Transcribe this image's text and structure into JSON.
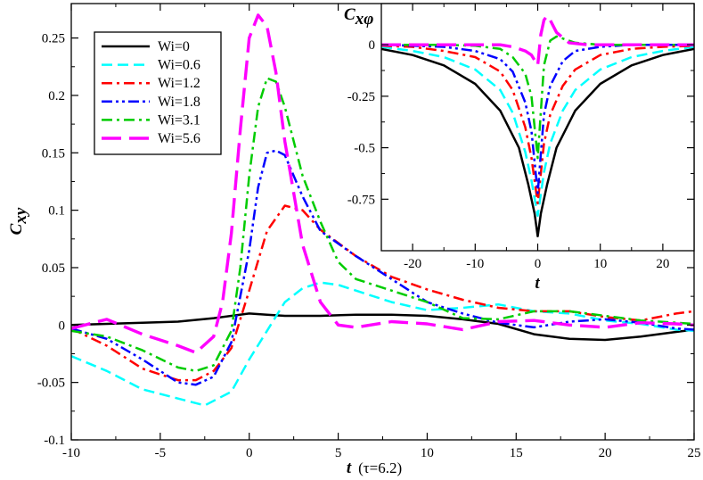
{
  "chart_data": [
    {
      "type": "line",
      "xlabel": "t",
      "xlabel_suffix": "(τ=6.2)",
      "ylabel": "C",
      "ylabel_sub": "xy",
      "xlim": [
        -10,
        25
      ],
      "ylim": [
        -0.1,
        0.28
      ],
      "xticks": [
        -10,
        -5,
        0,
        5,
        10,
        15,
        20,
        25
      ],
      "xtick_labels": [
        "-10",
        "-5",
        "0",
        "5",
        "10",
        "15",
        "20",
        "25"
      ],
      "yticks": [
        -0.1,
        -0.05,
        0,
        0.05,
        0.1,
        0.15,
        0.2,
        0.25
      ],
      "ytick_labels": [
        "-0.1",
        "-0.05",
        "0",
        "0.05",
        "0.1",
        "0.15",
        "0.2",
        "0.25"
      ],
      "legend_position": "top-left",
      "series": [
        {
          "name": "Wi=0",
          "color": "#000000",
          "dash": "solid",
          "x": [
            -10,
            -8,
            -6,
            -4,
            -2,
            0,
            1,
            2,
            4,
            6,
            8,
            10,
            12,
            14,
            16,
            18,
            20,
            22,
            24,
            25
          ],
          "y": [
            0,
            0.001,
            0.002,
            0.003,
            0.006,
            0.01,
            0.009,
            0.008,
            0.008,
            0.009,
            0.009,
            0.008,
            0.005,
            0.001,
            -0.008,
            -0.012,
            -0.013,
            -0.01,
            -0.006,
            -0.004
          ]
        },
        {
          "name": "Wi=0.6",
          "color": "#00ffff",
          "dash": "dashed",
          "x": [
            -10,
            -8,
            -6,
            -4,
            -2.5,
            -1,
            0,
            1,
            2,
            3,
            4,
            5,
            6,
            8,
            10,
            12,
            14,
            16,
            18,
            20,
            22,
            24,
            25
          ],
          "y": [
            -0.027,
            -0.04,
            -0.056,
            -0.064,
            -0.07,
            -0.058,
            -0.03,
            -0.005,
            0.02,
            0.032,
            0.037,
            0.035,
            0.03,
            0.02,
            0.013,
            0.015,
            0.018,
            0.012,
            0.01,
            0.004,
            0.001,
            -0.004,
            -0.005
          ]
        },
        {
          "name": "Wi=1.2",
          "color": "#ff0000",
          "dash": "dashdot",
          "x": [
            -10,
            -8,
            -6,
            -4,
            -3,
            -2,
            -1,
            0,
            1,
            2,
            3,
            4,
            6,
            8,
            10,
            12,
            14,
            16,
            18,
            20,
            22,
            24,
            25
          ],
          "y": [
            -0.003,
            -0.018,
            -0.038,
            -0.048,
            -0.048,
            -0.04,
            -0.02,
            0.03,
            0.082,
            0.104,
            0.1,
            0.083,
            0.06,
            0.042,
            0.031,
            0.022,
            0.015,
            0.012,
            0.012,
            0.007,
            0.004,
            0.01,
            0.012
          ]
        },
        {
          "name": "Wi=1.8",
          "color": "#0000ff",
          "dash": "dashdotdot",
          "x": [
            -10,
            -8,
            -6,
            -4,
            -3,
            -2,
            -1,
            0,
            0.5,
            1,
            1.5,
            2,
            3,
            4,
            6,
            8,
            10,
            12,
            14,
            16,
            18,
            20,
            22,
            24,
            25
          ],
          "y": [
            -0.003,
            -0.012,
            -0.03,
            -0.05,
            -0.052,
            -0.045,
            -0.015,
            0.065,
            0.12,
            0.15,
            0.152,
            0.148,
            0.112,
            0.082,
            0.06,
            0.04,
            0.02,
            0.01,
            0.002,
            -0.002,
            0.003,
            0.005,
            0.002,
            -0.003,
            -0.004
          ]
        },
        {
          "name": "Wi=3.1",
          "color": "#00cc00",
          "dash": "dashdot",
          "x": [
            -10,
            -8,
            -6,
            -4,
            -3,
            -2,
            -1,
            -0.5,
            0,
            0.5,
            1,
            1.5,
            2,
            3,
            4,
            5,
            6,
            8,
            10,
            12,
            14,
            16,
            18,
            20,
            22,
            24,
            25
          ],
          "y": [
            -0.005,
            -0.01,
            -0.022,
            -0.037,
            -0.04,
            -0.035,
            -0.005,
            0.05,
            0.13,
            0.19,
            0.215,
            0.212,
            0.19,
            0.13,
            0.09,
            0.055,
            0.04,
            0.03,
            0.02,
            0.006,
            0.005,
            0.012,
            0.012,
            0.008,
            0.004,
            0.002,
            0.001
          ]
        },
        {
          "name": "Wi=5.6",
          "color": "#ff00ff",
          "dash": "longdash",
          "x": [
            -10,
            -8,
            -6,
            -4,
            -3,
            -2,
            -1.5,
            -1,
            -0.5,
            0,
            0.5,
            1,
            1.5,
            2,
            3,
            4,
            5,
            6,
            8,
            10,
            12,
            14,
            16,
            18,
            20,
            22,
            24,
            25
          ],
          "y": [
            -0.003,
            0.005,
            -0.008,
            -0.018,
            -0.024,
            -0.01,
            0.02,
            0.08,
            0.17,
            0.25,
            0.27,
            0.26,
            0.22,
            0.16,
            0.07,
            0.02,
            0.0,
            -0.002,
            0.003,
            0.001,
            -0.004,
            0.003,
            0.004,
            0.0,
            -0.002,
            0.002,
            0.001,
            0.0
          ]
        }
      ]
    },
    {
      "type": "line",
      "title": "inset",
      "xlabel": "t",
      "ylabel": "C",
      "ylabel_sub": "xφ",
      "xlim": [
        -25,
        25
      ],
      "ylim": [
        -1,
        0.2
      ],
      "xticks": [
        -20,
        -10,
        0,
        10,
        20
      ],
      "xtick_labels": [
        "-20",
        "-10",
        "0",
        "10",
        "20"
      ],
      "yticks": [
        -0.75,
        -0.5,
        -0.25,
        0
      ],
      "ytick_labels": [
        "-0.75",
        "-0.5",
        "-0.25",
        "0"
      ],
      "series": [
        {
          "name": "Wi=0",
          "color": "#000000",
          "dash": "solid",
          "x": [
            -25,
            -20,
            -15,
            -10,
            -6,
            -3,
            -1.5,
            -0.5,
            0,
            0.5,
            1.5,
            3,
            6,
            10,
            15,
            20,
            25
          ],
          "y": [
            -0.02,
            -0.05,
            -0.1,
            -0.19,
            -0.32,
            -0.5,
            -0.68,
            -0.82,
            -0.93,
            -0.82,
            -0.68,
            -0.5,
            -0.32,
            -0.19,
            -0.1,
            -0.05,
            -0.02
          ]
        },
        {
          "name": "Wi=0.6",
          "color": "#00ffff",
          "dash": "dashed",
          "x": [
            -25,
            -20,
            -15,
            -10,
            -6,
            -4,
            -2,
            -1,
            0,
            1,
            2,
            4,
            6,
            10,
            15,
            20,
            25
          ],
          "y": [
            -0.01,
            -0.03,
            -0.06,
            -0.12,
            -0.22,
            -0.33,
            -0.52,
            -0.66,
            -0.83,
            -0.62,
            -0.48,
            -0.32,
            -0.22,
            -0.12,
            -0.06,
            -0.03,
            -0.01
          ]
        },
        {
          "name": "Wi=1.2",
          "color": "#ff0000",
          "dash": "dashdot",
          "x": [
            -25,
            -20,
            -15,
            -10,
            -6,
            -4,
            -2,
            -1,
            0,
            1,
            2,
            4,
            6,
            10,
            15,
            20,
            25
          ],
          "y": [
            -0.005,
            -0.01,
            -0.03,
            -0.06,
            -0.13,
            -0.22,
            -0.4,
            -0.55,
            -0.77,
            -0.48,
            -0.34,
            -0.2,
            -0.12,
            -0.05,
            -0.02,
            -0.01,
            -0.005
          ]
        },
        {
          "name": "Wi=1.8",
          "color": "#0000ff",
          "dash": "dashdotdot",
          "x": [
            -25,
            -20,
            -15,
            -10,
            -6,
            -4,
            -2,
            -1,
            0,
            1,
            2,
            4,
            6,
            10,
            15,
            20,
            25
          ],
          "y": [
            0,
            -0.005,
            -0.01,
            -0.03,
            -0.07,
            -0.13,
            -0.28,
            -0.42,
            -0.72,
            -0.34,
            -0.2,
            -0.08,
            -0.03,
            -0.01,
            0,
            0,
            0
          ]
        },
        {
          "name": "Wi=3.1",
          "color": "#00cc00",
          "dash": "dashdot",
          "x": [
            -25,
            -20,
            -15,
            -10,
            -6,
            -4,
            -2,
            -1,
            0,
            1,
            2,
            3,
            4,
            6,
            10,
            15,
            20,
            25
          ],
          "y": [
            0,
            0,
            0,
            -0.005,
            -0.02,
            -0.06,
            -0.14,
            -0.25,
            -0.55,
            -0.1,
            0.02,
            0.04,
            0.03,
            0.01,
            0,
            0,
            0,
            0
          ]
        },
        {
          "name": "Wi=5.6",
          "color": "#ff00ff",
          "dash": "longdash",
          "x": [
            -25,
            -20,
            -15,
            -10,
            -6,
            -4,
            -2,
            -1,
            0,
            0.5,
            1,
            1.5,
            2,
            3,
            5,
            8,
            12,
            16,
            20,
            25
          ],
          "y": [
            0,
            0,
            0,
            0,
            0,
            -0.01,
            -0.03,
            -0.05,
            -0.1,
            0.05,
            0.12,
            0.14,
            0.12,
            0.06,
            0.01,
            0,
            0,
            0,
            0,
            0
          ]
        }
      ]
    }
  ]
}
